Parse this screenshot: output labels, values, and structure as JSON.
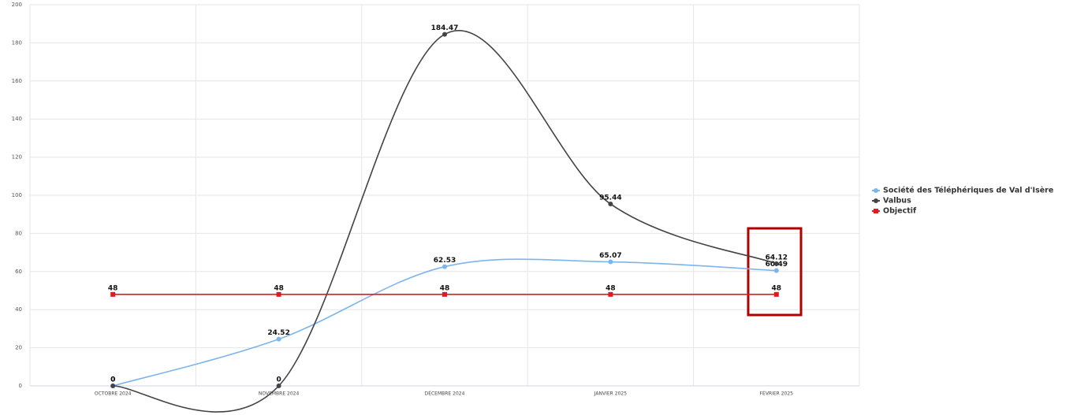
{
  "chart_data": {
    "type": "line",
    "categories": [
      "OCTOBRE 2024",
      "NOVEMBRE 2024",
      "DÉCEMBRE 2024",
      "JANVIER 2025",
      "FÉVRIER 2025"
    ],
    "series": [
      {
        "name": "Société des Téléphériques de Val d'Isère",
        "color": "#7cb5ec",
        "marker": "circle",
        "values": [
          0,
          24.52,
          62.53,
          65.07,
          60.49
        ]
      },
      {
        "name": "Valbus",
        "color": "#434348",
        "marker": "circle",
        "values": [
          0,
          0,
          184.47,
          95.44,
          64.12
        ]
      },
      {
        "name": "Objectif",
        "color": "#e31a1c",
        "marker": "square",
        "values": [
          48,
          48,
          48,
          48,
          48
        ]
      }
    ],
    "ylim": [
      0,
      200
    ],
    "yticks": [
      0,
      20,
      40,
      60,
      80,
      100,
      120,
      140,
      160,
      180,
      200
    ],
    "grid": true,
    "smooth": true,
    "legend": "right"
  }
}
